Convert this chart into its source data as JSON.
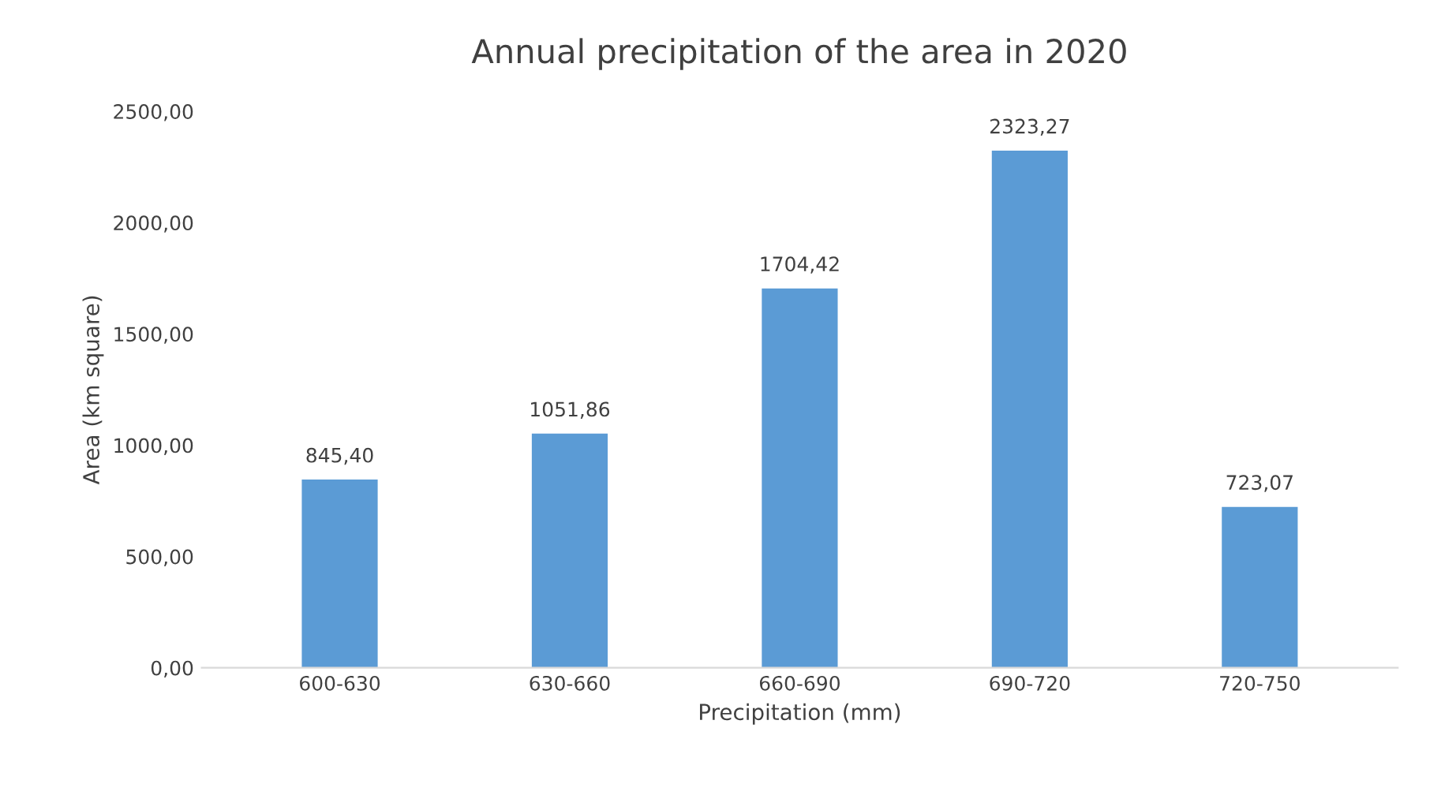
{
  "chart_data": {
    "type": "bar",
    "title": "Annual precipitation of the area in 2020",
    "xlabel": "Precipitation (mm)",
    "ylabel": "Area (km square)",
    "categories": [
      "600-630",
      "630-660",
      "660-690",
      "690-720",
      "720-750"
    ],
    "values": [
      845.4,
      1051.86,
      1704.42,
      2323.27,
      723.07
    ],
    "value_labels": [
      "845,40",
      "1051,86",
      "1704,42",
      "2323,27",
      "723,07"
    ],
    "color": "#5b9bd5",
    "ylim": [
      0,
      2500
    ],
    "yticks": [
      {
        "value": 0,
        "label": "0,00"
      },
      {
        "value": 500,
        "label": "500,00"
      },
      {
        "value": 1000,
        "label": "1000,00"
      },
      {
        "value": 1500,
        "label": "1500,00"
      },
      {
        "value": 2000,
        "label": "2000,00"
      },
      {
        "value": 2500,
        "label": "2500,00"
      }
    ],
    "grid": false,
    "legend": false
  }
}
